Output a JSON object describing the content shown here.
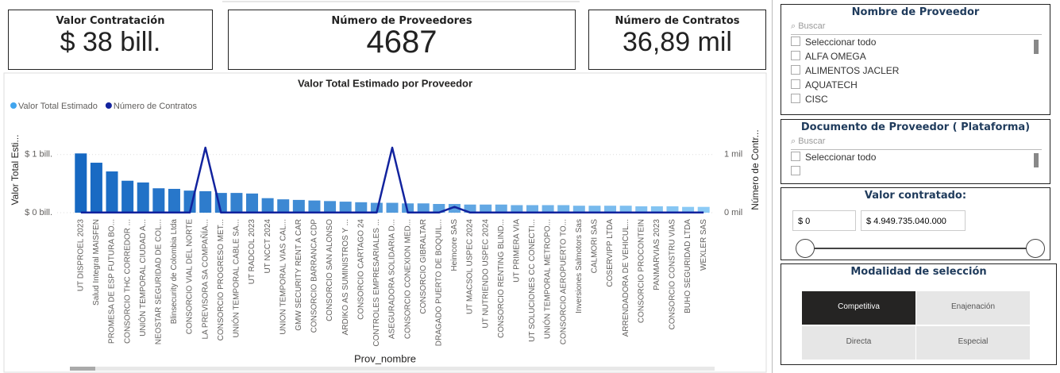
{
  "kpis": [
    {
      "title": "Valor Contratación",
      "value": "$ 38 bill."
    },
    {
      "title": "Número de Proveedores",
      "value": "4687"
    },
    {
      "title": "Número de Contratos",
      "value": "36,89 mil"
    }
  ],
  "chart_data": {
    "type": "bar_line",
    "title": "Valor Total Estimado por Proveedor",
    "x_label": "Prov_nombre",
    "y_label": "Valor Total Esti...",
    "y2_label": "Número de Contr...",
    "categories": [
      "UT DISPROEL 2023",
      "Salud Integral MAISFEN",
      "PROMESA DE ESP FUTURA BO...",
      "CONSORCIO THC CORREDOR ...",
      "UNIÓN TEMPORAL CIUDAD A...",
      "NEOSTAR SEGURIDAD DE COL...",
      "Blinsecurity de Colombia Ltda",
      "CONSORCIO VIAL DEL NORTE",
      "LA PREVISORA SA COMPAÑÍA...",
      "CONSORCIO PROGRESO MET...",
      "UNIÓN TEMPORAL CABLE SA...",
      "UT RADCOL 2023",
      "UT NCCT 2024",
      "UNION TEMPORAL VIAS CAL...",
      "GMW SECURITY RENT A CAR",
      "CONSORCIO BARRANCA CDP",
      "CONSORCIO SAN ALONSO",
      "ARDIKO AS SUMINISTROS Y ...",
      "CONSORCIO CARTAGO 24",
      "CONTROLES EMPRESARIALES ...",
      "ASEGURADORA SOLIDARIA D...",
      "CONSORCIO CONEXION MED...",
      "CONSORCIO GIBRALTAR",
      "DRAGADO PUERTO DE BOQUIL...",
      "Heimcore SAS",
      "UT MACSOL USPEC 2024",
      "UT NUTRIENDO USPEC 2024",
      "CONSORCIO RENTING BLIND...",
      "UT PRIMERA VIA",
      "UT SOLUCIONES CC CONECTI...",
      "UNIÓN TEMPORAL METROPO...",
      "CONSORCIO AEROPUERTO TO...",
      "Inversiones Salmotors Sas",
      "CALMORI SAS",
      "COSERVIPP LTDA",
      "ARRENDADORA DE VEHICUL...",
      "CONSORCIO PROCONTEIN",
      "PANMARVIAS 2023",
      "CONSORCIO CONSTRU VIAS",
      "BUHO SEGURIDAD LTDA",
      "WEXLER SAS"
    ],
    "series": [
      {
        "name": "Valor Total Estimado",
        "color": "#41a5ee",
        "gradient": [
          "#1668c2",
          "#8ccbf6"
        ],
        "values": [
          1.02,
          0.86,
          0.71,
          0.55,
          0.52,
          0.42,
          0.41,
          0.38,
          0.37,
          0.34,
          0.34,
          0.33,
          0.25,
          0.23,
          0.22,
          0.21,
          0.2,
          0.19,
          0.18,
          0.17,
          0.17,
          0.16,
          0.16,
          0.15,
          0.15,
          0.14,
          0.14,
          0.14,
          0.13,
          0.13,
          0.13,
          0.13,
          0.12,
          0.12,
          0.12,
          0.12,
          0.11,
          0.11,
          0.11,
          0.1,
          0.1
        ]
      },
      {
        "name": "Número de Contratos",
        "color": "#12239e",
        "axis": "y2",
        "values": [
          0.003,
          0.003,
          0.003,
          0.003,
          0.003,
          0.003,
          0.003,
          0.003,
          1.12,
          0.003,
          0.003,
          0.003,
          0.003,
          0.003,
          0.003,
          0.003,
          0.003,
          0.003,
          0.003,
          0.003,
          1.12,
          0.003,
          0.003,
          0.003,
          0.1,
          0.003,
          0.003,
          0.003,
          0.003,
          0.003,
          0.003,
          0.003,
          0.003,
          0.003,
          0.003,
          0.003,
          0.003,
          0.003,
          0.003,
          0.003,
          0.003
        ]
      }
    ],
    "ylim": [
      0,
      1.12
    ],
    "yticks": [
      {
        "value": 0,
        "label": "$ 0 bill."
      },
      {
        "value": 1,
        "label": "$ 1 bill."
      }
    ],
    "y2lim": [
      0,
      1.12
    ],
    "y2ticks": [
      {
        "value": 0,
        "label": "0 mil"
      },
      {
        "value": 1,
        "label": "1 mil"
      }
    ],
    "grid": true,
    "legend": "top-left"
  },
  "slicers": {
    "proveedor": {
      "title": "Nombre de Proveedor",
      "search": "Buscar",
      "items": [
        "Seleccionar todo",
        "ALFA OMEGA",
        "ALIMENTOS JACLER",
        "AQUATECH",
        "CISC"
      ]
    },
    "documento": {
      "title": "Documento de Proveedor ( Plataforma)",
      "search": "Buscar",
      "items": [
        "Seleccionar todo"
      ]
    },
    "valor": {
      "title": "Valor contratado:",
      "min": "$ 0",
      "max": "$ 4.949.735.040.000"
    },
    "modalidad": {
      "title": "Modalidad de selección",
      "options": [
        "Competitiva",
        "Enajenación",
        "Directa",
        "Especial"
      ],
      "selected": 0
    }
  }
}
